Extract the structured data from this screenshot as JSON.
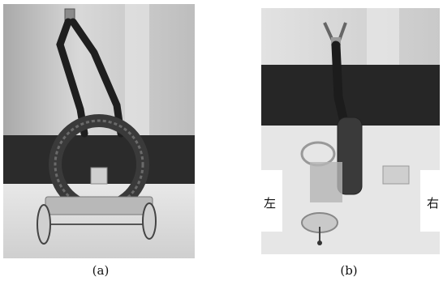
{
  "figure": {
    "panels": [
      {
        "caption": "(a)"
      },
      {
        "caption": "(b)"
      }
    ],
    "direction_labels": {
      "left": "左",
      "right": "右"
    }
  }
}
